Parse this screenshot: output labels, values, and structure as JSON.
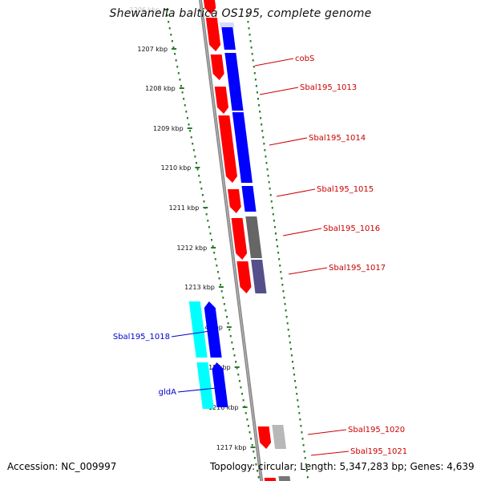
{
  "title": "Shewanella baltica OS195, complete genome",
  "accession": "Accession: NC_009997",
  "topology": "Topology: circular; Length: 5,347,283 bp; Genes: 4,639",
  "kbp_labels": [
    {
      "label": "1206 kbp",
      "faded": true
    },
    {
      "label": "1207 kbp",
      "faded": false
    },
    {
      "label": "1208 kbp",
      "faded": false
    },
    {
      "label": "1209 kbp",
      "faded": false
    },
    {
      "label": "1210 kbp",
      "faded": false
    },
    {
      "label": "1211 kbp",
      "faded": false
    },
    {
      "label": "1212 kbp",
      "faded": false
    },
    {
      "label": "1213 kbp",
      "faded": false
    },
    {
      "label": "1214 kbp",
      "faded": false
    },
    {
      "label": "1215 kbp",
      "faded": false
    },
    {
      "label": "1216 kbp",
      "faded": false
    },
    {
      "label": "1217 kbp",
      "faded": false
    }
  ],
  "gene_labels_forward": [
    "cobS",
    "Sbal195_1013",
    "Sbal195_1014",
    "Sbal195_1015",
    "Sbal195_1016",
    "Sbal195_1017",
    "Sbal195_1020",
    "Sbal195_1021"
  ],
  "gene_labels_reverse": [
    "Sbal195_1018",
    "gldA"
  ],
  "colors": {
    "backbone": "#888888",
    "tick": "#2a7a2a",
    "red": "#ff0000",
    "blue": "#0000ff",
    "cyan": "#00ffff",
    "gray": "#666666",
    "slate": "#55508a",
    "label_red": "#cc0000",
    "label_blue": "#0000cc"
  }
}
